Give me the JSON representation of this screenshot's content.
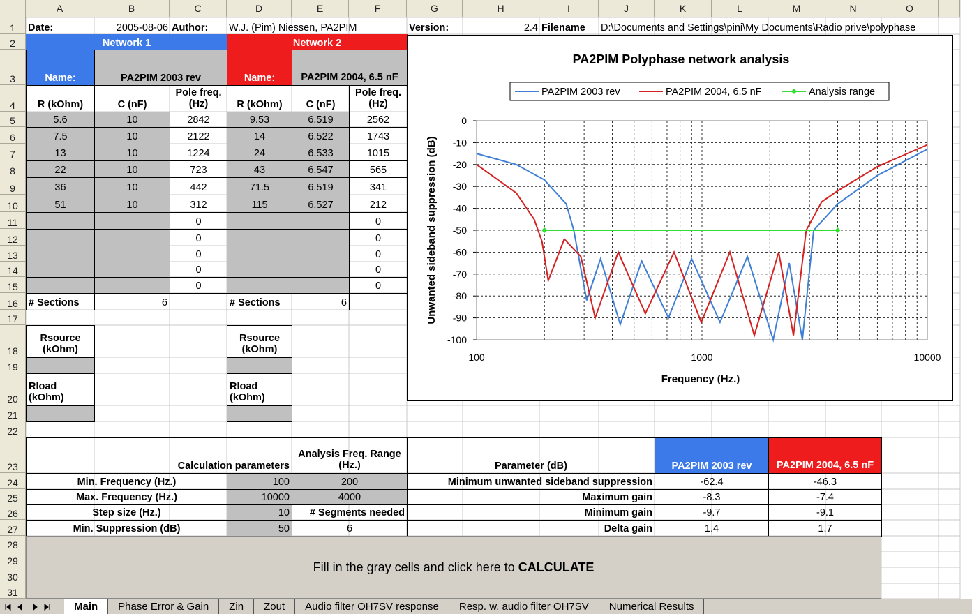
{
  "columns": [
    "A",
    "B",
    "C",
    "D",
    "E",
    "F",
    "G",
    "H",
    "I",
    "J",
    "K",
    "L",
    "M",
    "N",
    "O"
  ],
  "row_numbers": [
    1,
    2,
    3,
    4,
    5,
    6,
    7,
    8,
    9,
    10,
    11,
    12,
    13,
    14,
    15,
    16,
    17,
    18,
    19,
    20,
    21,
    22,
    23,
    24,
    25,
    26,
    27,
    28,
    29,
    30,
    31
  ],
  "sheet": {
    "1": {
      "A": "Date:",
      "B": "2005-08-06",
      "C": "Author:",
      "D": "W.J. (Pim) Niessen, PA2PIM",
      "G": "Version:",
      "H": 2.4,
      "I": "Filename",
      "J": "D:\\Documents and Settings\\pini\\My Documents\\Radio prive\\polyphase"
    },
    "2": {
      "A": "Network 1",
      "D": "Network 2"
    },
    "3": {
      "A": "Name:",
      "B": "PA2PIM 2003 rev",
      "D": "Name:",
      "E": "PA2PIM 2004, 6.5 nF"
    },
    "4": {
      "A": "R (kOhm)",
      "B": "C (nF)",
      "C": "Pole freq.(Hz)",
      "D": "R (kOhm)",
      "E": "C (nF)",
      "F": "Pole freq.(Hz)"
    },
    "5": {
      "A": 5.6,
      "B": 10,
      "C": 2842,
      "D": 9.53,
      "E": 6.519,
      "F": 2562
    },
    "6": {
      "A": 7.5,
      "B": 10,
      "C": 2122,
      "D": 14,
      "E": 6.522,
      "F": 1743
    },
    "7": {
      "A": 13,
      "B": 10,
      "C": 1224,
      "D": 24,
      "E": 6.533,
      "F": 1015
    },
    "8": {
      "A": 22,
      "B": 10,
      "C": 723,
      "D": 43,
      "E": 6.547,
      "F": 565
    },
    "9": {
      "A": 36,
      "B": 10,
      "C": 442,
      "D": 71.5,
      "E": 6.519,
      "F": 341
    },
    "10": {
      "A": 51,
      "B": 10,
      "C": 312,
      "D": 115,
      "E": 6.527,
      "F": 212
    },
    "11": {
      "C": 0,
      "F": 0
    },
    "12": {
      "C": 0,
      "F": 0
    },
    "13": {
      "C": 0,
      "F": 0
    },
    "14": {
      "C": 0,
      "F": 0
    },
    "15": {
      "C": 0,
      "F": 0
    },
    "16": {
      "A": "# Sections",
      "B": 6,
      "D": "# Sections",
      "E": 6
    },
    "18": {
      "A": "Rsource (kOhm)",
      "D": "Rsource (kOhm)"
    },
    "20": {
      "A": "Rload (kOhm)",
      "D": "Rload (kOhm)"
    },
    "23": {
      "A": "Calculation parameters",
      "E": "Analysis Freq. Range (Hz.)",
      "G": "Parameter (dB)",
      "K": "PA2PIM 2003 rev",
      "M": "PA2PIM 2004, 6.5 nF"
    },
    "24": {
      "A": "Min. Frequency (Hz.)",
      "D": 100,
      "E": 200,
      "G": "Minimum unwanted sideband suppression",
      "K": -62.4,
      "M": -46.3
    },
    "25": {
      "A": "Max. Frequency (Hz.)",
      "D": 10000,
      "E": 4000,
      "G": "Maximum gain",
      "K": -8.3,
      "M": -7.4
    },
    "26": {
      "A": "Step size (Hz.)",
      "D": 10,
      "E": "# Segments needed",
      "G": "Minimum gain",
      "K": -9.7,
      "M": -9.1
    },
    "27": {
      "A": "Min. Suppression (dB)",
      "D": 50,
      "E": 6,
      "G": "Delta gain",
      "K": 1.4,
      "M": 1.7
    }
  },
  "button": {
    "text": "Fill in the gray cells and click here to",
    "strong": "CALCULATE"
  },
  "tabs": [
    "Main",
    "Phase Error & Gain",
    "Zin",
    "Zout",
    "Audio filter OH7SV response",
    "Resp. w. audio filter OH7SV",
    "Numerical Results"
  ],
  "chart": {
    "type": "line",
    "title": "PA2PIM Polyphase network analysis",
    "xlabel": "Frequency (Hz.)",
    "ylabel": "Unwanted sideband suppression (dB)",
    "log_x": true,
    "grid": true,
    "xlim": [
      100,
      10000
    ],
    "xticks": [
      100,
      1000,
      10000
    ],
    "x_minor_ticks": [
      200,
      300,
      400,
      500,
      600,
      700,
      800,
      900,
      2000,
      3000,
      4000,
      5000,
      6000,
      7000,
      8000,
      9000
    ],
    "ylim": [
      -100,
      0
    ],
    "yticks": [
      0,
      -10,
      -20,
      -30,
      -40,
      -50,
      -60,
      -70,
      -80,
      -90,
      -100
    ],
    "series": [
      {
        "name": "PA2PIM 2003 rev",
        "color": "#3f7fd6",
        "x": [
          100,
          150,
          200,
          250,
          270,
          308,
          355,
          434,
          540,
          710,
          900,
          1203,
          1590,
          2070,
          2440,
          2790,
          3130,
          4000,
          6000,
          10000
        ],
        "values": [
          -15,
          -20,
          -27,
          -38,
          -50,
          -82,
          -63,
          -93,
          -64,
          -90,
          -63,
          -92,
          -62,
          -100,
          -65,
          -100,
          -50,
          -38,
          -25,
          -13
        ]
      },
      {
        "name": "PA2PIM 2004, 6.5 nF",
        "color": "#d42222",
        "x": [
          100,
          150,
          180,
          195,
          208,
          245,
          290,
          336,
          425,
          561,
          752,
          993,
          1330,
          1707,
          2190,
          2546,
          2900,
          3400,
          4000,
          6000,
          10000
        ],
        "values": [
          -20,
          -33,
          -45,
          -55,
          -73,
          -54,
          -62,
          -90,
          -60,
          -88,
          -60,
          -92,
          -60,
          -98,
          -60,
          -98,
          -50,
          -37,
          -32,
          -21,
          -11
        ]
      },
      {
        "name": "Analysis range",
        "color": "#33dd33",
        "marker": true,
        "x": [
          200,
          4000
        ],
        "values": [
          -50,
          -50
        ]
      }
    ]
  }
}
